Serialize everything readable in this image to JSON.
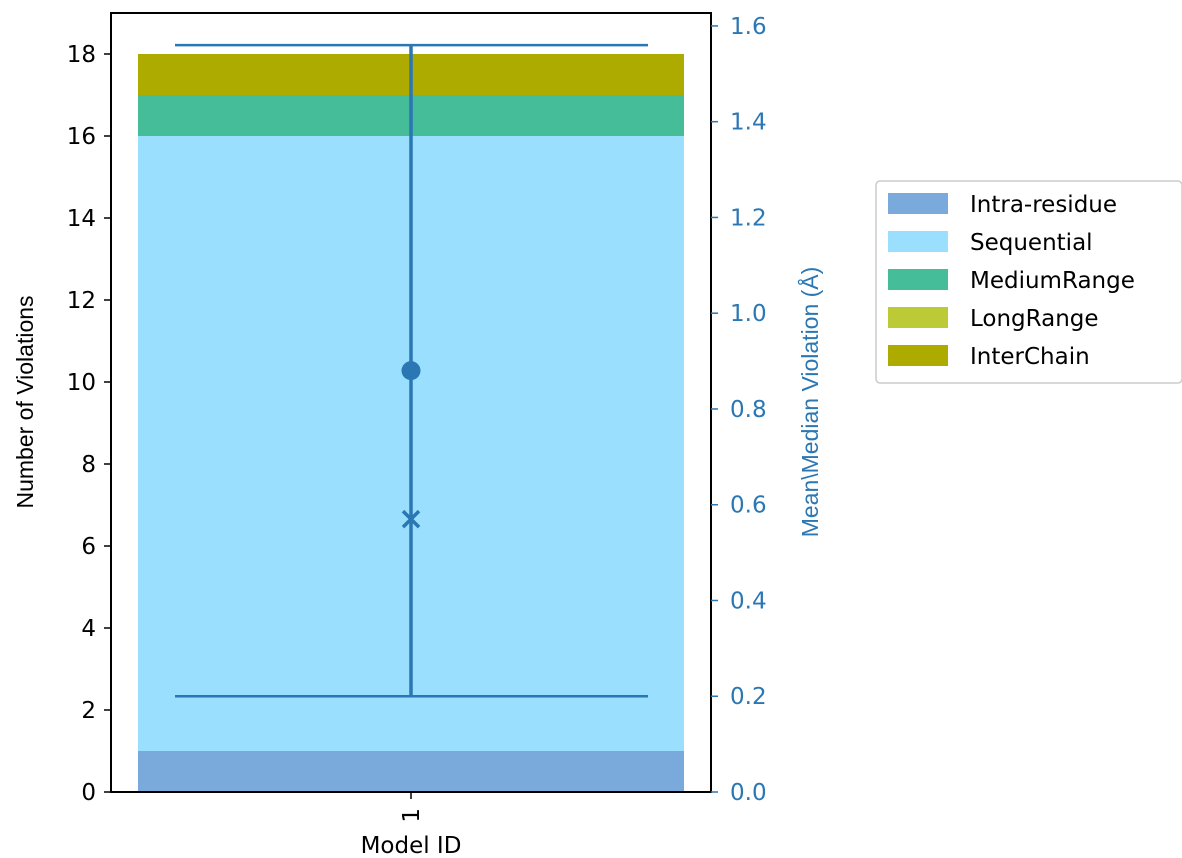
{
  "chart_data": {
    "type": "bar",
    "categories": [
      "1"
    ],
    "xlabel": "Model ID",
    "ylabel": "Number of Violations",
    "ylabel_right": "Mean\\Median Violation (Å)",
    "ylim": [
      0,
      19.0
    ],
    "ylim_right": [
      0,
      1.627
    ],
    "yticks": [
      0,
      2,
      4,
      6,
      8,
      10,
      12,
      14,
      16,
      18
    ],
    "yticks_right": [
      "0.0",
      "0.2",
      "0.4",
      "0.6",
      "0.8",
      "1.0",
      "1.2",
      "1.4",
      "1.6"
    ],
    "series": [
      {
        "name": "Intra-residue",
        "values": [
          1
        ],
        "color": "#7aaadc"
      },
      {
        "name": "Sequential",
        "values": [
          15
        ],
        "color": "#9adffd"
      },
      {
        "name": "MediumRange",
        "values": [
          1
        ],
        "color": "#45bd98"
      },
      {
        "name": "LongRange",
        "values": [
          0
        ],
        "color": "#bccb35"
      },
      {
        "name": "InterChain",
        "values": [
          1
        ],
        "color": "#aeab00"
      }
    ],
    "secondary": {
      "mean": 0.88,
      "median": 0.57,
      "min": 0.2,
      "max": 1.56,
      "color": "#2a77b4"
    },
    "legend_position": "right"
  }
}
